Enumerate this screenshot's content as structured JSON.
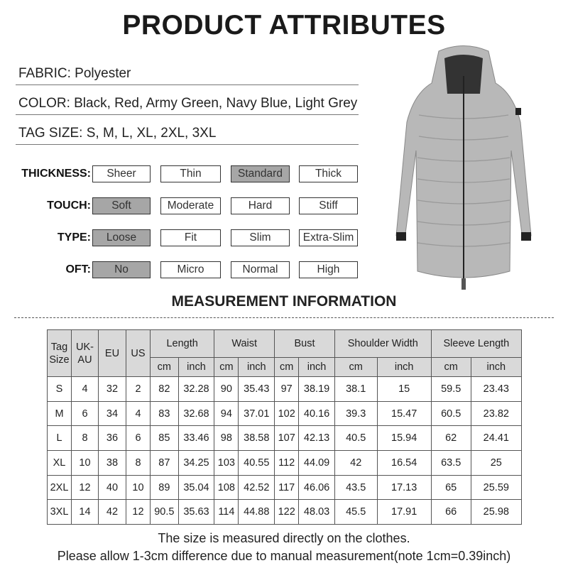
{
  "title": "PRODUCT ATTRIBUTES",
  "attributes": [
    "FABRIC: Polyester",
    "COLOR: Black, Red, Army Green, Navy Blue, Light Grey",
    "TAG SIZE:  S, M, L, XL, 2XL, 3XL"
  ],
  "options": [
    {
      "label": "THICKNESS:",
      "choices": [
        "Sheer",
        "Thin",
        "Standard",
        "Thick"
      ],
      "selected": "Standard"
    },
    {
      "label": "TOUCH:",
      "choices": [
        "Soft",
        "Moderate",
        "Hard",
        "Stiff"
      ],
      "selected": "Soft"
    },
    {
      "label": "TYPE:",
      "choices": [
        "Loose",
        "Fit",
        "Slim",
        "Extra-Slim"
      ],
      "selected": "Loose"
    },
    {
      "label": "OFT:",
      "choices": [
        "No",
        "Micro",
        "Normal",
        "High"
      ],
      "selected": "No"
    }
  ],
  "colors": {
    "selected_fill": "#a6a6a6",
    "header_fill": "#d9d9d9",
    "jacket": "#b8b8b8"
  },
  "measurement": {
    "title": "MEASUREMENT INFORMATION",
    "headers": {
      "tag": "Tag Size",
      "uk": "UK-AU",
      "eu": "EU",
      "us": "US",
      "groups": [
        "Length",
        "Waist",
        "Bust",
        "Shoulder Width",
        "Sleeve Length"
      ],
      "cm": "cm",
      "inch": "inch"
    },
    "rows": [
      [
        "S",
        "4",
        "32",
        "2",
        "82",
        "32.28",
        "90",
        "35.43",
        "97",
        "38.19",
        "38.1",
        "15",
        "59.5",
        "23.43"
      ],
      [
        "M",
        "6",
        "34",
        "4",
        "83",
        "32.68",
        "94",
        "37.01",
        "102",
        "40.16",
        "39.3",
        "15.47",
        "60.5",
        "23.82"
      ],
      [
        "L",
        "8",
        "36",
        "6",
        "85",
        "33.46",
        "98",
        "38.58",
        "107",
        "42.13",
        "40.5",
        "15.94",
        "62",
        "24.41"
      ],
      [
        "XL",
        "10",
        "38",
        "8",
        "87",
        "34.25",
        "103",
        "40.55",
        "112",
        "44.09",
        "42",
        "16.54",
        "63.5",
        "25"
      ],
      [
        "2XL",
        "12",
        "40",
        "10",
        "89",
        "35.04",
        "108",
        "42.52",
        "117",
        "46.06",
        "43.5",
        "17.13",
        "65",
        "25.59"
      ],
      [
        "3XL",
        "14",
        "42",
        "12",
        "90.5",
        "35.63",
        "114",
        "44.88",
        "122",
        "48.03",
        "45.5",
        "17.91",
        "66",
        "25.98"
      ]
    ]
  },
  "notes": [
    "The size is measured directly on the clothes.",
    "Please allow 1-3cm difference due to manual measurement(note 1cm=0.39inch)"
  ]
}
